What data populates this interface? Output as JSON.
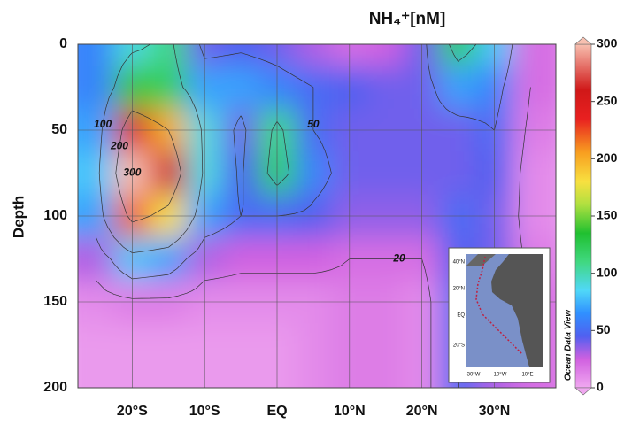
{
  "chart_data": {
    "type": "contour",
    "title": "NH₄⁺[nM]",
    "ylabel": "Depth",
    "colorbar_label": "Ocean Data View",
    "x": [
      -25,
      -20,
      -15,
      -10,
      -5,
      0,
      5,
      10,
      15,
      20,
      25,
      30,
      35
    ],
    "y": [
      0,
      25,
      50,
      75,
      100,
      125,
      150,
      175,
      200
    ],
    "z": [
      [
        60,
        90,
        110,
        40,
        45,
        40,
        30,
        20,
        25,
        40,
        120,
        80,
        20
      ],
      [
        60,
        140,
        120,
        70,
        70,
        60,
        50,
        45,
        40,
        40,
        70,
        60,
        20
      ],
      [
        70,
        250,
        200,
        90,
        40,
        110,
        50,
        40,
        40,
        40,
        40,
        50,
        15
      ],
      [
        80,
        300,
        260,
        90,
        45,
        120,
        60,
        40,
        40,
        40,
        40,
        45,
        10
      ],
      [
        70,
        220,
        180,
        70,
        50,
        50,
        45,
        35,
        35,
        35,
        50,
        40,
        10
      ],
      [
        30,
        80,
        70,
        30,
        25,
        25,
        25,
        20,
        20,
        20,
        45,
        40,
        15
      ],
      [
        10,
        15,
        15,
        10,
        10,
        10,
        10,
        15,
        15,
        10,
        50,
        35,
        20
      ],
      [
        5,
        5,
        5,
        5,
        5,
        5,
        10,
        15,
        15,
        10,
        50,
        35,
        20
      ],
      [
        5,
        5,
        5,
        5,
        5,
        5,
        10,
        15,
        15,
        10,
        50,
        30,
        20
      ]
    ],
    "xlim": [
      -27.5,
      38.5
    ],
    "xticks": [
      {
        "value": -20,
        "label": "20°S"
      },
      {
        "value": -10,
        "label": "10°S"
      },
      {
        "value": 0,
        "label": "EQ"
      },
      {
        "value": 10,
        "label": "10°N"
      },
      {
        "value": 20,
        "label": "20°N"
      },
      {
        "value": 30,
        "label": "30°N"
      }
    ],
    "ylim": [
      0,
      200
    ],
    "yticks": [
      0,
      50,
      100,
      150,
      200
    ],
    "grid": true,
    "contour_levels": [
      20,
      50,
      100,
      200,
      300
    ],
    "clim": [
      0,
      300
    ],
    "cticks": [
      0,
      50,
      100,
      150,
      200,
      250,
      300
    ],
    "colormap": [
      [
        0,
        "#f0a8f0"
      ],
      [
        25,
        "#d060e0"
      ],
      [
        45,
        "#5060f0"
      ],
      [
        65,
        "#3090ff"
      ],
      [
        85,
        "#50d8f8"
      ],
      [
        110,
        "#40d880"
      ],
      [
        135,
        "#20c030"
      ],
      [
        160,
        "#b0e040"
      ],
      [
        180,
        "#f8e040"
      ],
      [
        205,
        "#f8a020"
      ],
      [
        235,
        "#e82020"
      ],
      [
        260,
        "#d01818"
      ],
      [
        300,
        "#f8c0b0"
      ]
    ],
    "inset": {
      "ylabels": [
        "40°N",
        "20°N",
        "EQ",
        "20°S"
      ],
      "xlabels": [
        "30°W",
        "10°W",
        "10°E"
      ]
    }
  }
}
